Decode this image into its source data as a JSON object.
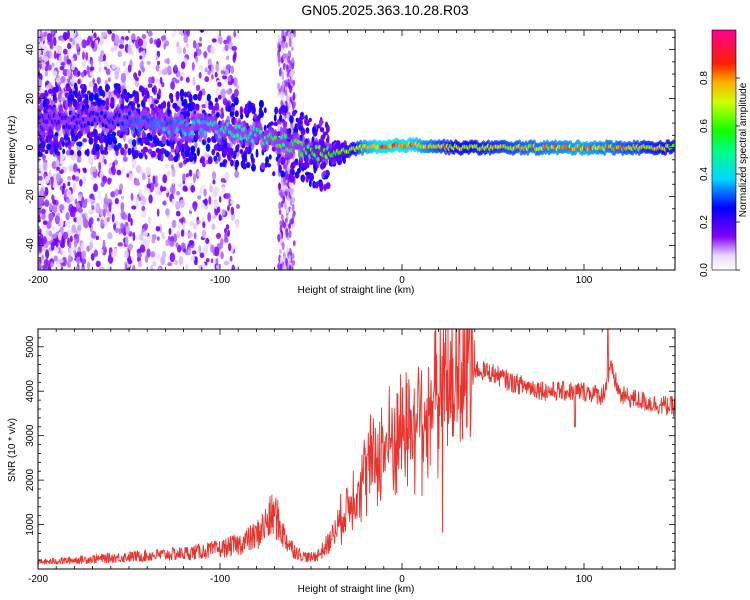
{
  "title": "GN05.2025.363.10.28.R03",
  "colors": {
    "snr_line": "#e8342f",
    "axis": "#000000",
    "background": "#ffffff"
  },
  "chart_data": [
    {
      "type": "heatmap",
      "name": "spectrogram",
      "xlabel": "Height of straight line (km)",
      "ylabel": "Frequency (Hz)",
      "xlim": [
        -200,
        150
      ],
      "ylim": [
        -50,
        48
      ],
      "xticks": [
        -200,
        -100,
        0,
        100
      ],
      "yticks": [
        -40,
        -20,
        0,
        20,
        40
      ],
      "colorbar": {
        "label": "Normalized spectral amplitude",
        "range": [
          0,
          1
        ],
        "ticks": [
          0.0,
          0.2,
          0.4,
          0.6,
          0.8
        ]
      },
      "ridge": {
        "x": [
          -200,
          -170,
          -150,
          -130,
          -110,
          -100,
          -90,
          -80,
          -70,
          -60,
          -50,
          -40,
          -30,
          -20,
          -10,
          0,
          10,
          30,
          60,
          100,
          150
        ],
        "y": [
          10,
          12,
          11,
          9,
          8,
          7,
          6,
          5,
          3,
          1,
          -2,
          -3,
          -1,
          0,
          0,
          1,
          1,
          0,
          0,
          0,
          0
        ],
        "amplitude": [
          0.2,
          0.25,
          0.3,
          0.35,
          0.4,
          0.45,
          0.5,
          0.5,
          0.55,
          0.55,
          0.6,
          0.6,
          0.65,
          0.8,
          0.85,
          0.85,
          0.8,
          0.7,
          0.75,
          0.8,
          0.7
        ]
      },
      "annotations": [
        "vertical band of scattered noise near x = -65 km"
      ]
    },
    {
      "type": "line",
      "name": "snr",
      "xlabel": "Height of straight line (km)",
      "ylabel": "SNR (10 * v/v)",
      "xlim": [
        -200,
        150
      ],
      "ylim": [
        0,
        5400
      ],
      "xticks": [
        -200,
        -100,
        0,
        100
      ],
      "yticks": [
        1000,
        2000,
        3000,
        4000,
        5000
      ],
      "series": [
        {
          "name": "SNR",
          "x": [
            -200,
            -180,
            -160,
            -140,
            -120,
            -110,
            -100,
            -90,
            -80,
            -75,
            -70,
            -65,
            -60,
            -55,
            -50,
            -45,
            -40,
            -35,
            -30,
            -25,
            -20,
            -15,
            -10,
            -5,
            0,
            5,
            10,
            15,
            20,
            25,
            30,
            35,
            40,
            45,
            50,
            60,
            70,
            80,
            90,
            100,
            110,
            115,
            120,
            130,
            140,
            150
          ],
          "y": [
            150,
            200,
            250,
            300,
            350,
            400,
            450,
            550,
            750,
            1000,
            1250,
            750,
            450,
            300,
            250,
            350,
            600,
            1000,
            1400,
            1800,
            2200,
            2500,
            2700,
            2900,
            3100,
            3300,
            3500,
            3700,
            3900,
            4100,
            4300,
            4450,
            4500,
            4450,
            4400,
            4200,
            4100,
            4000,
            4000,
            4000,
            3900,
            4500,
            3900,
            3800,
            3700,
            3650
          ]
        }
      ]
    }
  ]
}
